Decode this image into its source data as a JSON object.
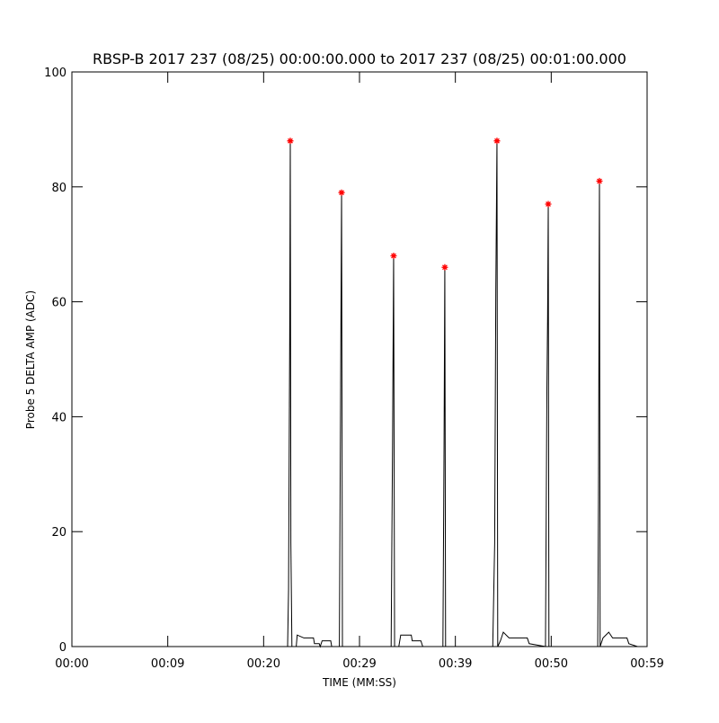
{
  "chart_data": {
    "type": "line",
    "title": "RBSP-B 2017 237 (08/25) 00:00:00.000 to 2017 237 (08/25) 00:01:00.000",
    "x_label": "TIME (MM:SS)",
    "y_label": "Probe 5 DELTA AMP (ADC)",
    "xlim": [
      0,
      60
    ],
    "ylim": [
      0,
      100
    ],
    "xticks": [
      {
        "value": 0,
        "label": "00:00"
      },
      {
        "value": 10,
        "label": "00:09"
      },
      {
        "value": 20,
        "label": "00:20"
      },
      {
        "value": 30,
        "label": "00:29"
      },
      {
        "value": 40,
        "label": "00:39"
      },
      {
        "value": 50,
        "label": "00:50"
      },
      {
        "value": 60,
        "label": "00:59"
      }
    ],
    "yticks": [
      0,
      20,
      40,
      60,
      80,
      100
    ],
    "series": [
      {
        "color": "#000000",
        "x": [
          0,
          21.5,
          22.5,
          22.6,
          22.72,
          22.78,
          22.84,
          22.95,
          23.4,
          23.5,
          24.2,
          25.2,
          25.3,
          25.8,
          25.9,
          26.1,
          27.0,
          27.1,
          27.9,
          28.05,
          28.13,
          28.22,
          29.5,
          33.3,
          33.45,
          33.56,
          33.66,
          34.1,
          34.3,
          35.4,
          35.5,
          36.4,
          36.6,
          38.7,
          38.82,
          38.9,
          38.98,
          43.9,
          44.1,
          44.22,
          44.34,
          44.42,
          44.7,
          45.0,
          45.6,
          47.5,
          47.7,
          49.4,
          49.55,
          49.62,
          49.69,
          49.76,
          54.85,
          54.93,
          55.0,
          55.03,
          55.1,
          55.4,
          56.0,
          56.4,
          57.9,
          58.1,
          59.0,
          60
        ],
        "values": [
          0,
          0,
          0,
          10,
          54,
          88,
          18,
          0,
          0,
          2,
          1.5,
          1.5,
          0.5,
          0.5,
          0,
          1,
          1,
          0,
          0,
          52,
          79,
          0,
          0,
          0,
          36,
          68,
          0,
          0,
          2,
          2,
          1,
          1,
          0,
          0,
          35,
          66,
          0,
          0,
          18,
          62,
          88,
          0,
          1,
          2.5,
          1.5,
          1.5,
          0.5,
          0,
          45,
          57,
          77,
          0,
          0,
          26,
          67,
          81,
          0,
          1.5,
          2.5,
          1.5,
          1.5,
          0.5,
          0,
          0
        ]
      },
      {
        "color": "#ff0000",
        "x": [
          22.78,
          28.13,
          33.56,
          38.9,
          44.34,
          49.69,
          55.03
        ],
        "values": [
          88,
          79,
          68,
          66,
          88,
          77,
          81
        ]
      }
    ]
  }
}
